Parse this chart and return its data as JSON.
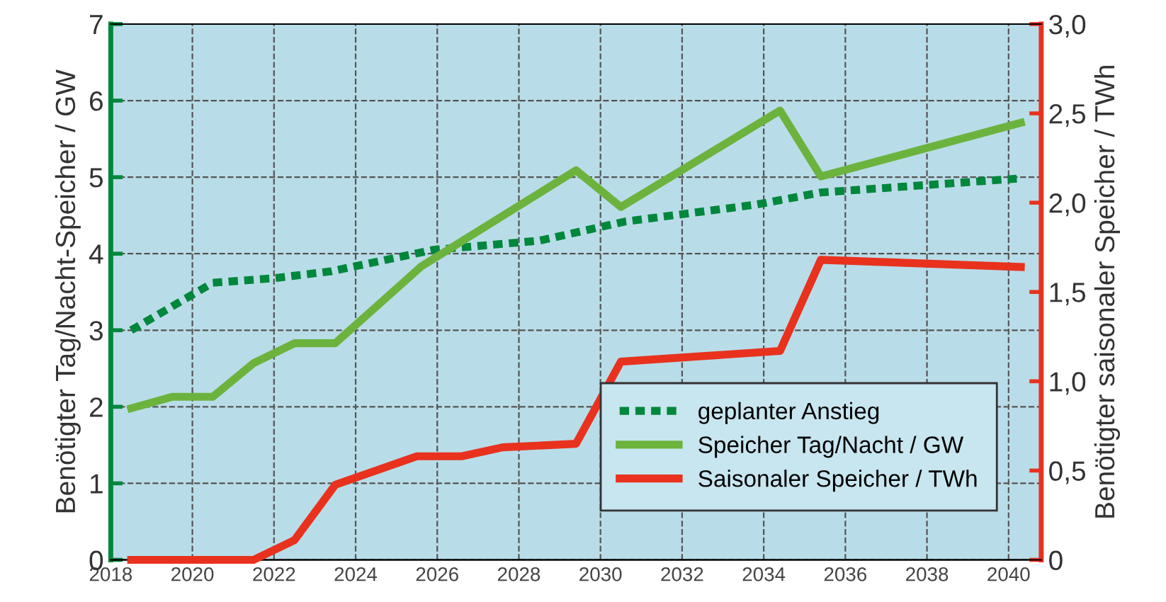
{
  "chart_data": {
    "type": "line",
    "ylabel": "Benötigter Tag/Nacht-Speicher / GW",
    "y2label": "Benötigter saisonaler Speicher / TWh",
    "xlim": [
      2018,
      2040.8
    ],
    "xticks": [
      2018,
      2020,
      2022,
      2024,
      2026,
      2028,
      2030,
      2032,
      2034,
      2036,
      2038,
      2040
    ],
    "ylim": [
      0,
      7
    ],
    "yticks": [
      0,
      1,
      2,
      3,
      4,
      5,
      6,
      7
    ],
    "y2lim": [
      0,
      3
    ],
    "y2ticks": [
      0,
      {
        "value": 0.5,
        "label": "0,5"
      },
      {
        "value": 1,
        "label": "1,0"
      },
      {
        "value": 1.5,
        "label": "1,5"
      },
      {
        "value": 2,
        "label": "2,0"
      },
      {
        "value": 2.5,
        "label": "2,5"
      },
      {
        "value": 3,
        "label": "3,0"
      }
    ],
    "grid": true,
    "legend": "bottom right",
    "marker": "none",
    "series": [
      {
        "name": "geplanter Anstieg",
        "color": "#00873c",
        "line_style": "dotted",
        "x": [
          2018.5,
          2020.5,
          2022,
          2023.4,
          2025.9,
          2028.5,
          2030.6,
          2033.8,
          2035.4,
          2040.2
        ],
        "values": [
          3.0,
          3.62,
          3.68,
          3.77,
          4.05,
          4.17,
          4.42,
          4.64,
          4.8,
          4.98
        ]
      },
      {
        "name": "Speicher Tag/Nacht / GW",
        "color": "#6cb33e",
        "line_style": "solid",
        "x": [
          2018.5,
          2019.5,
          2020.5,
          2021.5,
          2022.5,
          2023.5,
          2025.6,
          2029.4,
          2030.5,
          2034.4,
          2035.4,
          2040.3
        ],
        "values": [
          1.98,
          2.13,
          2.13,
          2.57,
          2.83,
          2.83,
          3.83,
          5.09,
          4.61,
          5.87,
          5.01,
          5.71
        ]
      },
      {
        "name": "Saisonaler Speicher / TWh",
        "color": "#e8321e",
        "line_style": "solid",
        "axis": "y2",
        "x": [
          2018.5,
          2021.5,
          2022.5,
          2023.5,
          2025.5,
          2026.6,
          2027.6,
          2029.4,
          2030.5,
          2034.4,
          2035.4,
          2040.3
        ],
        "values": [
          0,
          0,
          0.11,
          0.42,
          0.58,
          0.58,
          0.63,
          0.65,
          1.11,
          1.17,
          1.68,
          1.64
        ]
      }
    ]
  }
}
